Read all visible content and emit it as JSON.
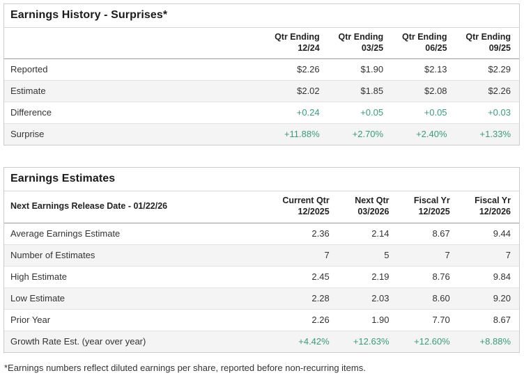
{
  "colors": {
    "accent_green": "#359d7d",
    "stripe": "#f4f4f4"
  },
  "earnings_history": {
    "title": "Earnings History - Surprises*",
    "corner_label": "",
    "columns": [
      [
        "Qtr Ending",
        "12/24"
      ],
      [
        "Qtr Ending",
        "03/25"
      ],
      [
        "Qtr Ending",
        "06/25"
      ],
      [
        "Qtr Ending",
        "09/25"
      ]
    ],
    "rows": [
      {
        "label": "Reported",
        "values": [
          "$2.26",
          "$1.90",
          "$2.13",
          "$2.29"
        ],
        "green": false
      },
      {
        "label": "Estimate",
        "values": [
          "$2.02",
          "$1.85",
          "$2.08",
          "$2.26"
        ],
        "green": false
      },
      {
        "label": "Difference",
        "values": [
          "+0.24",
          "+0.05",
          "+0.05",
          "+0.03"
        ],
        "green": true
      },
      {
        "label": "Surprise",
        "values": [
          "+11.88%",
          "+2.70%",
          "+2.40%",
          "+1.33%"
        ],
        "green": true
      }
    ]
  },
  "earnings_estimates": {
    "title": "Earnings Estimates",
    "corner_label": "Next Earnings Release Date - 01/22/26",
    "columns": [
      [
        "Current Qtr",
        "12/2025"
      ],
      [
        "Next Qtr",
        "03/2026"
      ],
      [
        "Fiscal Yr",
        "12/2025"
      ],
      [
        "Fiscal Yr",
        "12/2026"
      ]
    ],
    "rows": [
      {
        "label": "Average Earnings Estimate",
        "values": [
          "2.36",
          "2.14",
          "8.67",
          "9.44"
        ],
        "green": false
      },
      {
        "label": "Number of Estimates",
        "values": [
          "7",
          "5",
          "7",
          "7"
        ],
        "green": false
      },
      {
        "label": "High Estimate",
        "values": [
          "2.45",
          "2.19",
          "8.76",
          "9.84"
        ],
        "green": false
      },
      {
        "label": "Low Estimate",
        "values": [
          "2.28",
          "2.03",
          "8.60",
          "9.20"
        ],
        "green": false
      },
      {
        "label": "Prior Year",
        "values": [
          "2.26",
          "1.90",
          "7.70",
          "8.67"
        ],
        "green": false
      },
      {
        "label": "Growth Rate Est. (year over year)",
        "values": [
          "+4.42%",
          "+12.63%",
          "+12.60%",
          "+8.88%"
        ],
        "green": true
      }
    ]
  },
  "footnote": "*Earnings numbers reflect diluted earnings per share, reported before non-recurring items."
}
